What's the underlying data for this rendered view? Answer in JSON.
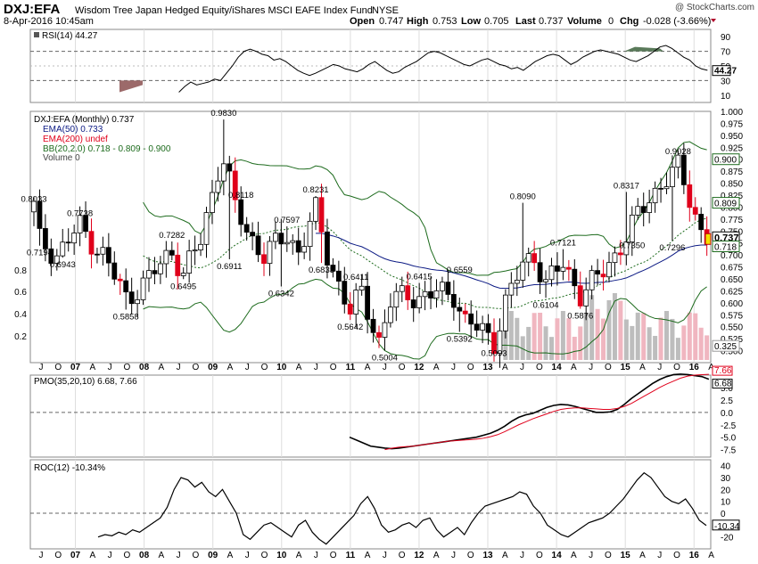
{
  "header": {
    "symbol": "DXJ:EFA",
    "name": "Wisdom Tree Japan Hedged Equity/iShares MSCI EAFE Index Fund",
    "exchange": "NYSE",
    "date": "8-Apr-2016 10:45am",
    "open_label": "Open",
    "open": "0.747",
    "high_label": "High",
    "high": "0.753",
    "low_label": "Low",
    "low": "0.705",
    "last_label": "Last",
    "last": "0.737",
    "volume_label": "Volume",
    "volume": "0",
    "chg_label": "Chg",
    "chg": "-0.028 (-3.66%)",
    "watermark": "@ StockCharts.com"
  },
  "colors": {
    "candle_up": "#ffffff",
    "candle_down": "#000000",
    "candle_red": "#e0001b",
    "ema50": "#0c1a84",
    "ema200": "#e0001b",
    "bb": "#1d6b1d",
    "volume_up": "#bdbdbd",
    "volume_down": "#f0b6c0",
    "rsi": "#000000",
    "rsi_over": "#5a7a5a",
    "rsi_under": "#9c6a6a",
    "pmo": "#000000",
    "pmo_signal": "#e0001b",
    "roc": "#000000"
  },
  "x_axis": {
    "ticks": [
      "J",
      "O",
      "07",
      "A",
      "J",
      "O",
      "08",
      "A",
      "J",
      "O",
      "09",
      "A",
      "J",
      "O",
      "10",
      "A",
      "J",
      "O",
      "11",
      "A",
      "J",
      "O",
      "12",
      "A",
      "J",
      "O",
      "13",
      "A",
      "J",
      "O",
      "14",
      "A",
      "J",
      "O",
      "15",
      "A",
      "J",
      "O",
      "16",
      "A"
    ]
  },
  "chart_data": [
    {
      "type": "line",
      "panel": "RSI",
      "legend": "RSI(14) 44.27",
      "ylim": [
        0,
        100
      ],
      "y_ticks": [
        10,
        30,
        50,
        70,
        90
      ],
      "hlines": [
        70,
        30
      ],
      "last_label": "44.27",
      "x": [
        0,
        1,
        2,
        3,
        4,
        5,
        6,
        7,
        8,
        9,
        10,
        11,
        12,
        13,
        14,
        15,
        16,
        17,
        18,
        19,
        20,
        21,
        22,
        23,
        24,
        25,
        26,
        27,
        28,
        29,
        30,
        31,
        32,
        33,
        34,
        35,
        36,
        37,
        38,
        39,
        40,
        41,
        42,
        43,
        44,
        45,
        46,
        47,
        48,
        49,
        50,
        51,
        52,
        53,
        54,
        55,
        56,
        57,
        58,
        59,
        60,
        61,
        62,
        63,
        64,
        65,
        66,
        67,
        68,
        69,
        70,
        71,
        72,
        73,
        74,
        75,
        76,
        77,
        78,
        79,
        80,
        81,
        82,
        83,
        84,
        85,
        86,
        87,
        88,
        89,
        90,
        91,
        92,
        93,
        94,
        95,
        96,
        97,
        98,
        99,
        100,
        101,
        102,
        103,
        104,
        105,
        106,
        107,
        108,
        109,
        110,
        111,
        112,
        113,
        114,
        115,
        116,
        117,
        118,
        119,
        120
      ],
      "values": [
        null,
        null,
        null,
        null,
        null,
        null,
        null,
        null,
        null,
        null,
        null,
        null,
        null,
        null,
        null,
        null,
        null,
        null,
        null,
        null,
        null,
        null,
        null,
        null,
        null,
        null,
        null,
        null,
        null,
        null,
        null,
        null,
        null,
        null,
        null,
        null,
        null,
        null,
        null,
        null,
        null,
        null,
        null,
        null,
        null,
        null,
        null,
        null,
        null,
        null,
        null,
        null,
        null,
        null,
        null,
        null,
        null,
        null,
        null,
        null,
        null,
        null,
        null,
        null,
        null,
        null,
        null,
        null,
        null,
        null,
        null,
        null,
        null,
        null,
        null,
        null,
        null,
        null,
        null,
        null,
        null,
        null,
        null,
        null,
        null,
        null,
        null,
        null,
        null,
        null,
        null,
        null,
        null,
        null,
        null,
        null,
        null,
        null,
        null,
        null,
        null,
        null,
        null,
        null,
        null,
        null,
        null,
        null,
        null,
        null,
        null,
        null,
        null,
        null,
        null,
        null,
        null,
        null,
        null,
        null,
        null
      ],
      "series_points": [
        [
          30,
          14
        ],
        [
          33,
          22
        ],
        [
          36,
          28
        ],
        [
          39,
          24
        ],
        [
          42,
          26
        ],
        [
          45,
          28
        ],
        [
          48,
          32
        ],
        [
          51,
          30
        ],
        [
          54,
          40
        ],
        [
          57,
          50
        ],
        [
          60,
          62
        ],
        [
          63,
          70
        ],
        [
          66,
          73
        ],
        [
          69,
          70
        ],
        [
          72,
          66
        ],
        [
          75,
          64
        ],
        [
          78,
          58
        ],
        [
          81,
          60
        ],
        [
          84,
          56
        ],
        [
          87,
          50
        ],
        [
          90,
          44
        ],
        [
          93,
          40
        ],
        [
          96,
          37
        ],
        [
          99,
          40
        ],
        [
          102,
          44
        ],
        [
          105,
          48
        ],
        [
          108,
          52
        ],
        [
          111,
          50
        ],
        [
          114,
          46
        ],
        [
          117,
          44
        ],
        [
          120,
          42
        ],
        [
          123,
          46
        ],
        [
          126,
          52
        ],
        [
          129,
          56
        ],
        [
          132,
          50
        ],
        [
          135,
          44
        ],
        [
          138,
          40
        ],
        [
          141,
          42
        ],
        [
          144,
          48
        ],
        [
          147,
          52
        ],
        [
          150,
          56
        ],
        [
          153,
          62
        ],
        [
          156,
          68
        ],
        [
          159,
          70
        ],
        [
          162,
          68
        ],
        [
          165,
          64
        ],
        [
          168,
          60
        ],
        [
          171,
          56
        ],
        [
          174,
          52
        ],
        [
          177,
          50
        ],
        [
          180,
          54
        ],
        [
          183,
          58
        ],
        [
          186,
          60
        ],
        [
          189,
          56
        ],
        [
          192,
          52
        ],
        [
          195,
          50
        ],
        [
          198,
          46
        ],
        [
          201,
          48
        ],
        [
          204,
          44
        ],
        [
          207,
          50
        ],
        [
          210,
          56
        ],
        [
          213,
          60
        ],
        [
          216,
          64
        ],
        [
          219,
          66
        ],
        [
          222,
          64
        ],
        [
          225,
          58
        ],
        [
          228,
          52
        ],
        [
          231,
          56
        ],
        [
          234,
          62
        ],
        [
          237,
          66
        ],
        [
          240,
          70
        ],
        [
          243,
          72
        ],
        [
          246,
          70
        ],
        [
          249,
          68
        ],
        [
          252,
          66
        ],
        [
          255,
          62
        ],
        [
          258,
          58
        ],
        [
          261,
          56
        ],
        [
          264,
          60
        ],
        [
          267,
          64
        ],
        [
          270,
          70
        ],
        [
          273,
          76
        ],
        [
          276,
          78
        ],
        [
          279,
          74
        ],
        [
          282,
          68
        ],
        [
          285,
          62
        ],
        [
          288,
          58
        ],
        [
          291,
          50
        ],
        [
          294,
          46
        ],
        [
          297,
          44
        ]
      ],
      "y_labels_right": [
        "90",
        "70",
        "50",
        "44.27",
        "30",
        "10"
      ]
    },
    {
      "type": "candlestick",
      "panel": "Price",
      "legend": [
        "DXJ:EFA (Monthly) 0.737",
        "EMA(50) 0.733",
        "EMA(200) undef",
        "BB(20,2.0) 0.718 - 0.809 - 0.900",
        "Volume 0"
      ],
      "ylim": [
        0.475,
        1.0
      ],
      "y_ticks": [
        0.5,
        0.525,
        0.55,
        0.575,
        0.6,
        0.625,
        0.65,
        0.675,
        0.7,
        0.725,
        0.75,
        0.775,
        0.8,
        0.825,
        0.85,
        0.875,
        0.9,
        0.925,
        0.95,
        0.975,
        1.0
      ],
      "y_tick_labels": [
        "0.500",
        "0.525",
        "0.550",
        "0.575",
        "0.600",
        "0.625",
        "0.650",
        "0.675",
        "0.700",
        "0.725",
        "0.750",
        "0.775",
        "0.800",
        "0.825",
        "0.850",
        "0.875",
        "0.900",
        "0.925",
        "0.950",
        "0.975",
        "1.000"
      ],
      "volume_axis": [
        "0.8",
        "0.6",
        "0.4",
        "0.2"
      ],
      "right_badges": [
        {
          "label": "0.900",
          "value": 0.9
        },
        {
          "label": "0.809",
          "value": 0.809
        },
        {
          "label": "0.737",
          "value": 0.737
        },
        {
          "label": "0.718",
          "value": 0.718
        },
        {
          "label": "0.325",
          "value": 0.51
        }
      ],
      "annotations": [
        {
          "label": "0.8033",
          "x": 0,
          "y": 0.8033
        },
        {
          "label": "0.7194",
          "x": 1,
          "y": 0.7194
        },
        {
          "label": "0.7738",
          "x": 8,
          "y": 0.7738
        },
        {
          "label": "0.6943",
          "x": 5,
          "y": 0.6943
        },
        {
          "label": "0.5858",
          "x": 16,
          "y": 0.5858
        },
        {
          "label": "0.7282",
          "x": 24,
          "y": 0.7282
        },
        {
          "label": "0.6495",
          "x": 26,
          "y": 0.6495
        },
        {
          "label": "0.9830",
          "x": 33,
          "y": 0.983
        },
        {
          "label": "0.8118",
          "x": 36,
          "y": 0.8118
        },
        {
          "label": "0.6911",
          "x": 34,
          "y": 0.6911
        },
        {
          "label": "0.7597",
          "x": 44,
          "y": 0.7597
        },
        {
          "label": "0.6342",
          "x": 43,
          "y": 0.6342
        },
        {
          "label": "0.8231",
          "x": 49,
          "y": 0.8231
        },
        {
          "label": "0.6833",
          "x": 50,
          "y": 0.6833
        },
        {
          "label": "0.6411",
          "x": 56,
          "y": 0.6411
        },
        {
          "label": "0.5642",
          "x": 55,
          "y": 0.5642
        },
        {
          "label": "0.5004",
          "x": 61,
          "y": 0.5004
        },
        {
          "label": "0.6415",
          "x": 67,
          "y": 0.6415
        },
        {
          "label": "0.6559",
          "x": 74,
          "y": 0.6559
        },
        {
          "label": "0.5392",
          "x": 74,
          "y": 0.5392
        },
        {
          "label": "0.5093",
          "x": 80,
          "y": 0.5093
        },
        {
          "label": "0.8090",
          "x": 85,
          "y": 0.809
        },
        {
          "label": "0.6104",
          "x": 89,
          "y": 0.6104
        },
        {
          "label": "0.7121",
          "x": 92,
          "y": 0.7121
        },
        {
          "label": "0.5876",
          "x": 95,
          "y": 0.5876
        },
        {
          "label": "0.8317",
          "x": 103,
          "y": 0.8317
        },
        {
          "label": "0.7350",
          "x": 104,
          "y": 0.735
        },
        {
          "label": "0.9028",
          "x": 112,
          "y": 0.9028
        },
        {
          "label": "0.7296",
          "x": 111,
          "y": 0.7296
        }
      ]
    },
    {
      "type": "line",
      "panel": "PMO",
      "legend": "PMO(35,20,10) 6.68, 7.66",
      "ylim": [
        -9,
        7.5
      ],
      "y_ticks": [
        -7.5,
        -5.0,
        -2.5,
        0.0,
        2.5,
        5.0
      ],
      "y_tick_labels": [
        "-7.5",
        "-5.0",
        "-2.5",
        "0.0",
        "2.5",
        "5.0"
      ],
      "series": [
        {
          "name": "PMO",
          "values": [
            -5.0,
            -5.6,
            -6.2,
            -6.8,
            -7.0,
            -7.2,
            -7.3,
            -7.2,
            -7.0,
            -6.8,
            -6.6,
            -6.4,
            -6.2,
            -6.0,
            -5.8,
            -5.6,
            -5.4,
            -5.2,
            -5.0,
            -4.6,
            -4.2,
            -3.6,
            -2.8,
            -1.8,
            -1.0,
            -0.5,
            -0.2,
            0.4,
            1.0,
            1.4,
            1.6,
            1.5,
            1.2,
            0.8,
            0.4,
            0.0,
            0.0,
            0.1,
            0.6,
            1.6,
            2.8,
            3.8,
            4.8,
            5.8,
            6.6,
            7.2,
            7.6,
            7.7,
            7.6,
            7.4,
            7.2,
            6.68
          ]
        },
        {
          "name": "Signal",
          "values": [
            null,
            null,
            null,
            null,
            null,
            -7.5,
            -7.2,
            -7.0,
            -6.9,
            -6.8,
            -6.6,
            -6.4,
            -6.2,
            -6.0,
            -5.8,
            -5.7,
            -5.6,
            -5.5,
            -5.4,
            -5.2,
            -4.9,
            -4.5,
            -3.9,
            -3.2,
            -2.5,
            -1.9,
            -1.3,
            -0.8,
            -0.3,
            0.2,
            0.6,
            0.8,
            0.9,
            0.9,
            0.8,
            0.7,
            0.6,
            0.6,
            0.8,
            1.2,
            1.8,
            2.6,
            3.4,
            4.2,
            5.0,
            5.7,
            6.3,
            6.9,
            7.3,
            7.5,
            7.6,
            7.66
          ]
        }
      ],
      "last_labels": [
        "7.66",
        "6.68"
      ]
    },
    {
      "type": "line",
      "panel": "ROC",
      "legend": "ROC(12) -10.34%",
      "ylim": [
        -30,
        45
      ],
      "y_ticks": [
        -20,
        -10,
        0,
        10,
        20,
        30,
        40
      ],
      "y_tick_labels": [
        "-20",
        "-10",
        "0",
        "10",
        "20",
        "30",
        "40"
      ],
      "last_label": "-10.34"
    }
  ]
}
